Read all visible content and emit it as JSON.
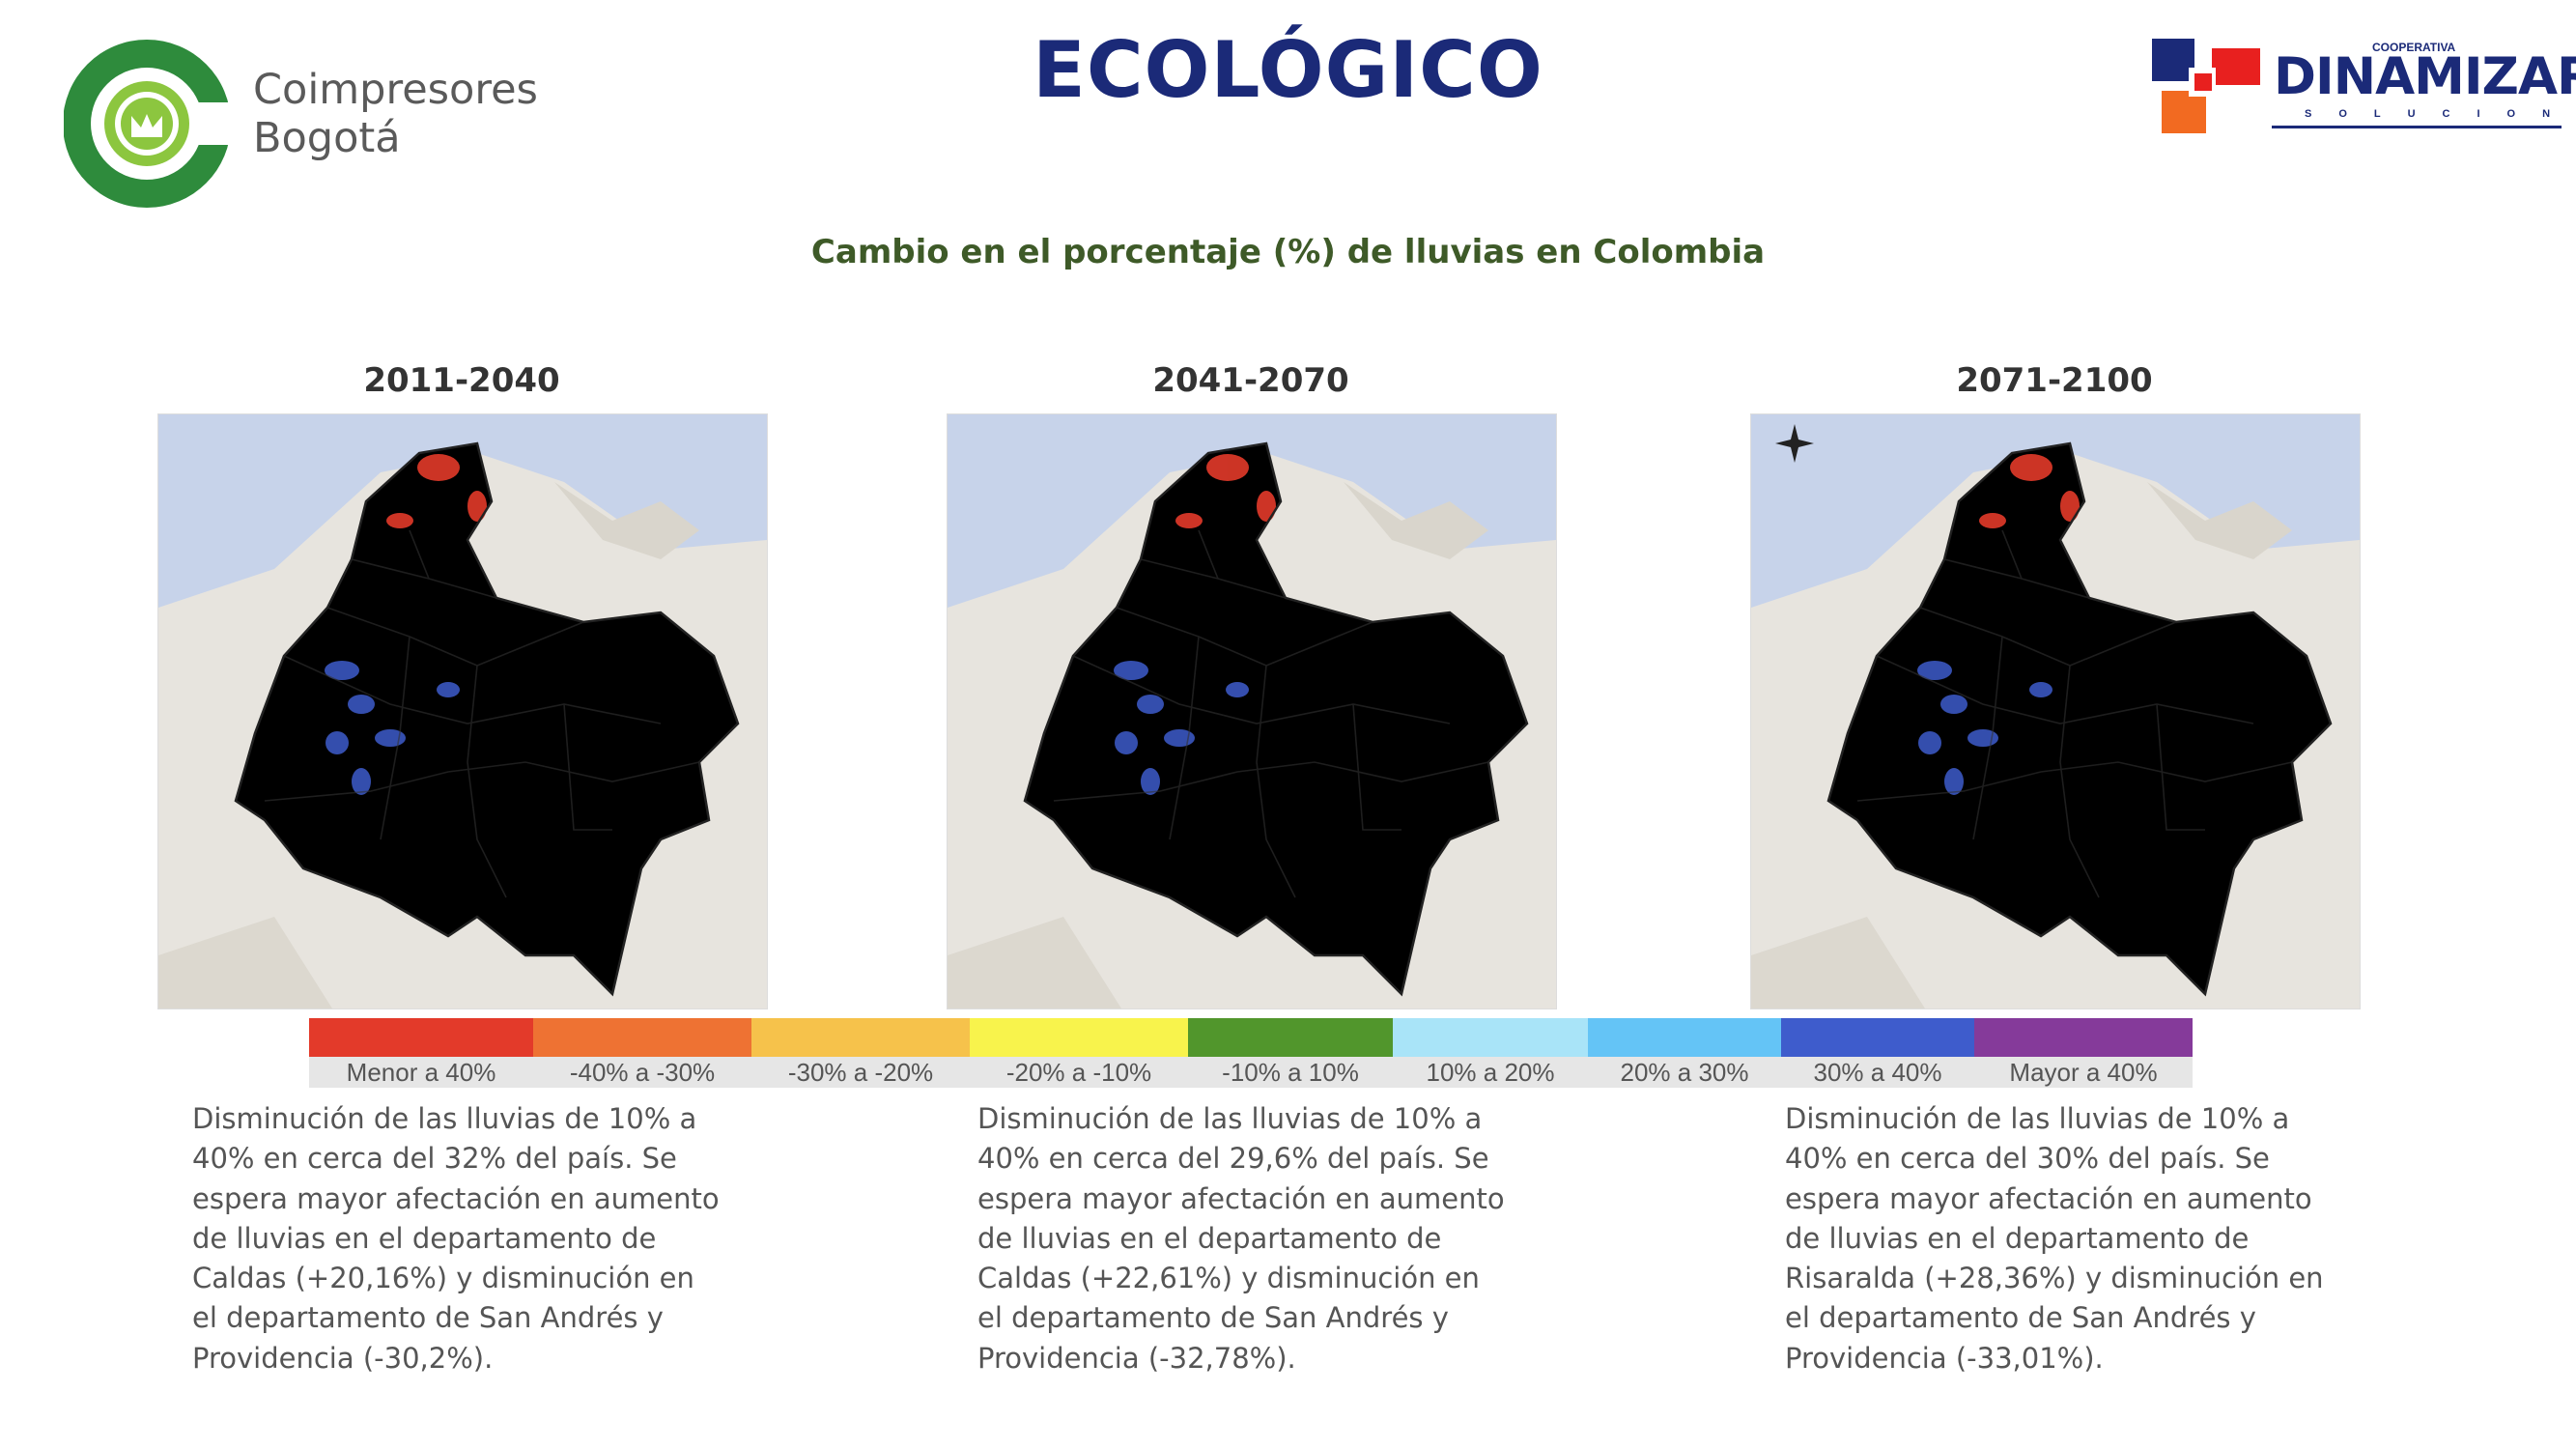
{
  "header": {
    "left_logo": {
      "line1": "Coimpresores",
      "line2": "Bogotá"
    },
    "title": "ECOLÓGICO",
    "right_logo": {
      "top": "COOPERATIVA",
      "name": "DINAMIZAR",
      "bottom": "SOLUCIONES"
    }
  },
  "subtitle": "Cambio en el porcentaje (%) de lluvias en Colombia",
  "maps": [
    {
      "title": "2011-2040",
      "icon": "colombia-rainfall-map"
    },
    {
      "title": "2041-2070",
      "icon": "colombia-rainfall-map"
    },
    {
      "title": "2071-2100",
      "icon": "colombia-rainfall-map"
    }
  ],
  "legend": [
    {
      "label": "Menor a 40%",
      "color": "#e33a2a"
    },
    {
      "label": "-40% a -30%",
      "color": "#ee7233"
    },
    {
      "label": "-30% a -20%",
      "color": "#f6c24b"
    },
    {
      "label": "-20% a -10%",
      "color": "#f8f34c"
    },
    {
      "label": "-10% a 10%",
      "color": "#51962c"
    },
    {
      "label": "10% a 20%",
      "color": "#a9e4f8"
    },
    {
      "label": "20% a 30%",
      "color": "#64c4f6"
    },
    {
      "label": "30% a 40%",
      "color": "#3e5ccc"
    },
    {
      "label": "Mayor a 40%",
      "color": "#853a9a"
    }
  ],
  "descriptions": [
    [
      "Disminución de las lluvias de 10% a",
      "40% en cerca del 32% del país. Se",
      "espera mayor afectación en aumento",
      "de lluvias en el departamento de",
      "Caldas (+20,16%) y disminución en",
      "el departamento de San Andrés y",
      "Providencia (-30,2%)."
    ],
    [
      "Disminución de las lluvias de 10% a",
      "40% en cerca del 29,6% del país. Se",
      "espera mayor afectación en aumento",
      "de lluvias en el departamento de",
      "Caldas (+22,61%) y disminución en",
      "el departamento de San Andrés y",
      "Providencia (-32,78%)."
    ],
    [
      "Disminución de las lluvias de 10% a",
      "40% en cerca del 30% del país. Se",
      "espera mayor afectación en aumento",
      "de lluvias en el departamento de",
      "Risaralda (+28,36%) y disminución en",
      "el departamento de San Andrés y",
      "Providencia (-33,01%)."
    ]
  ],
  "colors": {
    "title": "#1b2a78",
    "subtitle": "#3e5a28",
    "logo_green": "#2e8b3c",
    "logo_lime": "#8cc63f",
    "logo_red": "#e8201f",
    "logo_orange": "#f26a21"
  }
}
